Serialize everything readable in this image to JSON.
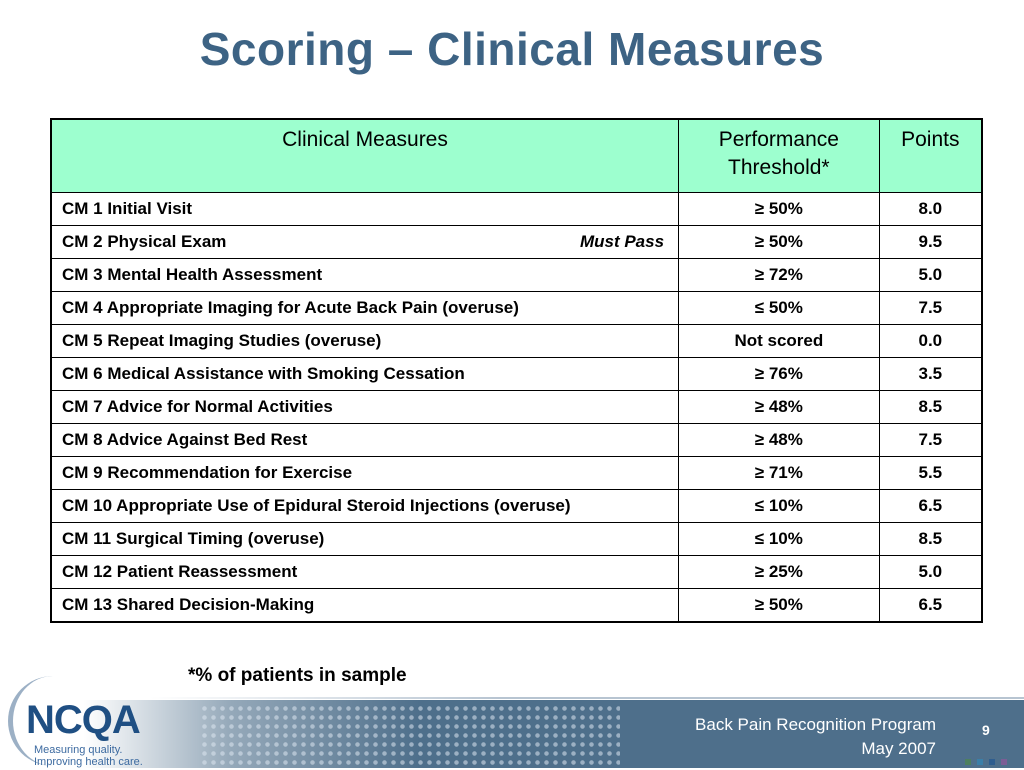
{
  "title": "Scoring – Clinical Measures",
  "table": {
    "headers": {
      "measure": "Clinical Measures",
      "threshold_line1": "Performance",
      "threshold_line2": "Threshold*",
      "points": "Points"
    },
    "rows": [
      {
        "measure": "CM 1 Initial Visit",
        "note": "",
        "threshold": "≥ 50%",
        "points": "8.0"
      },
      {
        "measure": "CM 2 Physical Exam",
        "note": "Must Pass",
        "threshold": "≥ 50%",
        "points": "9.5"
      },
      {
        "measure": "CM 3 Mental Health Assessment",
        "note": "",
        "threshold": "≥ 72%",
        "points": "5.0"
      },
      {
        "measure": "CM 4 Appropriate Imaging for Acute Back Pain (overuse)",
        "note": "",
        "threshold": "≤ 50%",
        "points": "7.5"
      },
      {
        "measure": "CM 5 Repeat Imaging Studies (overuse)",
        "note": "",
        "threshold": "Not scored",
        "points": "0.0"
      },
      {
        "measure": "CM 6 Medical Assistance with Smoking Cessation",
        "note": "",
        "threshold": "≥ 76%",
        "points": "3.5"
      },
      {
        "measure": "CM 7 Advice for Normal Activities",
        "note": "",
        "threshold": "≥ 48%",
        "points": "8.5"
      },
      {
        "measure": "CM 8 Advice Against Bed Rest",
        "note": "",
        "threshold": "≥ 48%",
        "points": "7.5"
      },
      {
        "measure": "CM 9 Recommendation for Exercise",
        "note": "",
        "threshold": "≥ 71%",
        "points": "5.5"
      },
      {
        "measure": "CM 10 Appropriate Use of Epidural Steroid Injections (overuse)",
        "note": "",
        "threshold": "≤ 10%",
        "points": "6.5"
      },
      {
        "measure": "CM 11 Surgical Timing (overuse)",
        "note": "",
        "threshold": "≤ 10%",
        "points": "8.5"
      },
      {
        "measure": "CM 12 Patient Reassessment",
        "note": "",
        "threshold": "≥ 25%",
        "points": "5.0"
      },
      {
        "measure": "CM 13 Shared Decision-Making",
        "note": "",
        "threshold": "≥ 50%",
        "points": "6.5"
      }
    ]
  },
  "footnote": "*% of patients in sample",
  "footer": {
    "logo_text": "NCQA",
    "logo_tagline_1": "Measuring quality.",
    "logo_tagline_2": "Improving health care.",
    "program": "Back Pain Recognition Program",
    "date": "May 2007",
    "page_number": "9"
  },
  "colors": {
    "title": "#3d6384",
    "header_bg": "#9dffcf",
    "footer_band": "#4e6f8b",
    "logo": "#1f4f83",
    "footer_squares": [
      "#4d7f5f",
      "#3b7fa8",
      "#2f5e8f",
      "#7b5d95"
    ]
  }
}
